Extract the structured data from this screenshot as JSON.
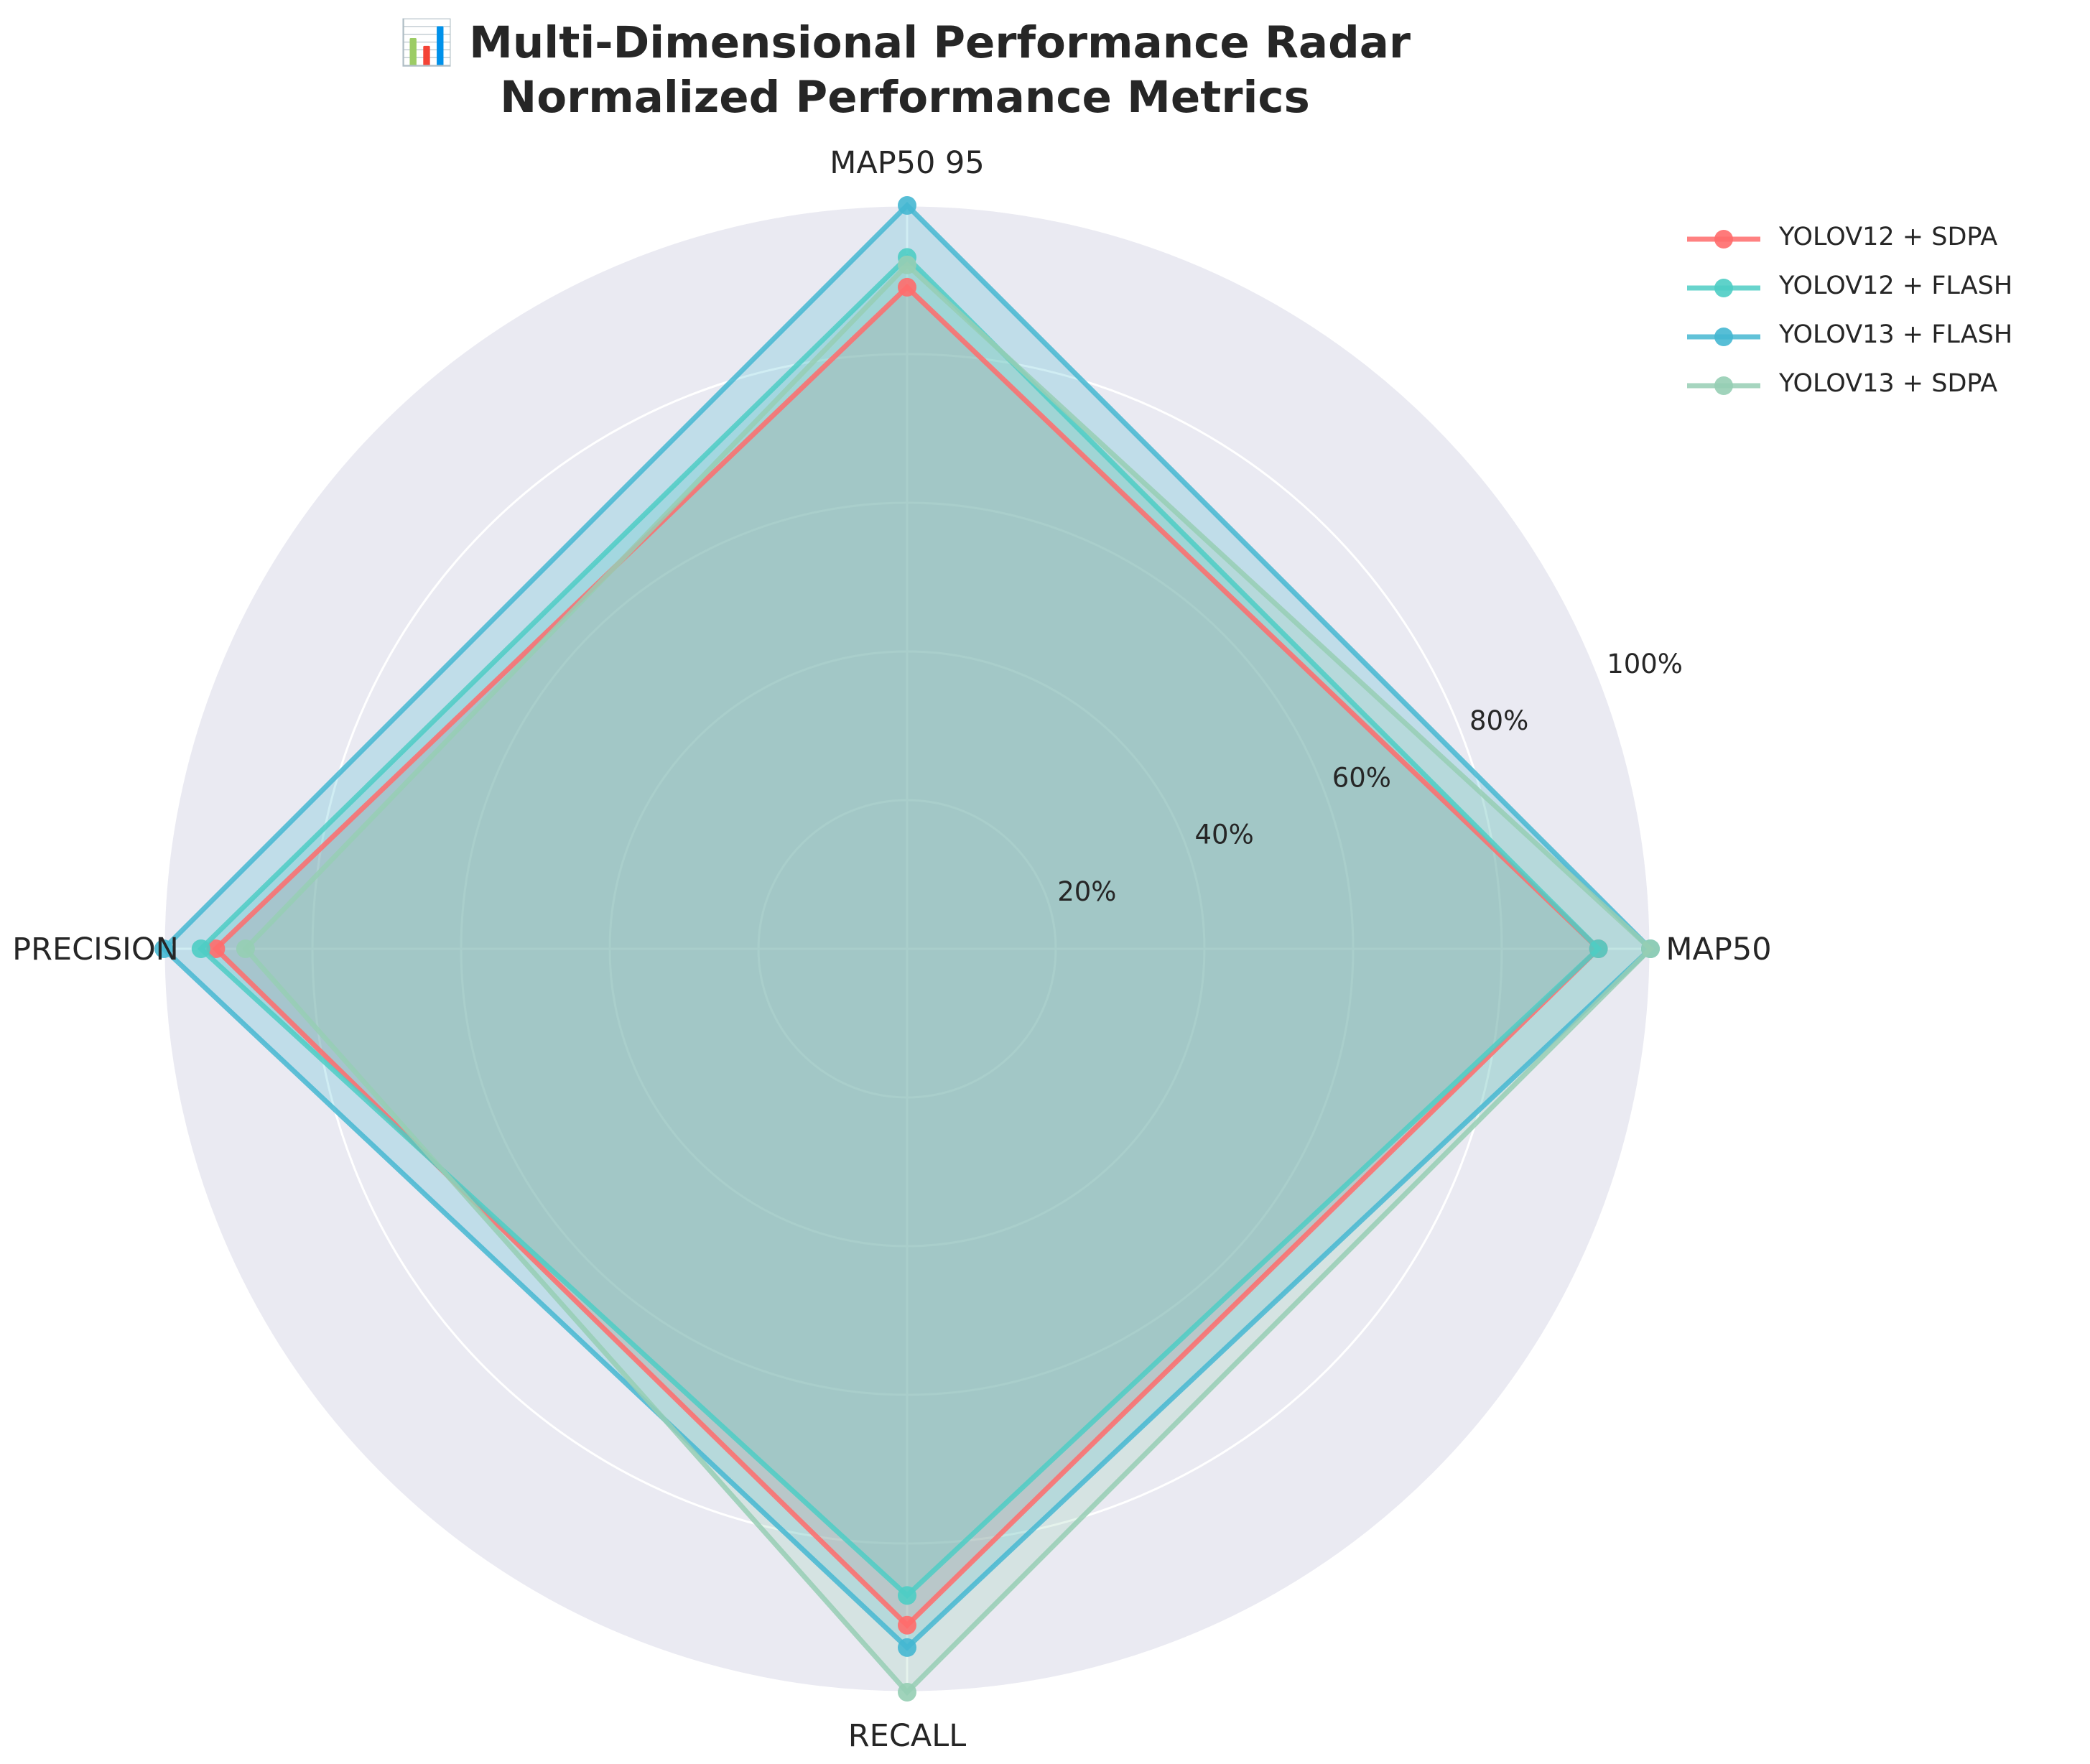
{
  "chart_data": {
    "type": "radar",
    "title_lines": [
      "📊 Multi-Dimensional Performance Radar",
      "Normalized Performance Metrics"
    ],
    "axes": [
      "MAP50",
      "MAP50 95",
      "PRECISION",
      "RECALL"
    ],
    "radial_ticks": [
      "20%",
      "40%",
      "60%",
      "80%",
      "100%"
    ],
    "radial_tick_values": [
      0.2,
      0.4,
      0.6,
      0.8,
      1.0
    ],
    "rlim": [
      0,
      1
    ],
    "grid": true,
    "legend_position": "upper-right-outside",
    "series": [
      {
        "name": "YOLOV12 + SDPA",
        "color": "#ff6b6b",
        "values": [
          0.93,
          0.89,
          0.93,
          0.91
        ]
      },
      {
        "name": "YOLOV12 + FLASH",
        "color": "#4ecdc4",
        "values": [
          0.93,
          0.93,
          0.95,
          0.87
        ]
      },
      {
        "name": "YOLOV13 + FLASH",
        "color": "#45b7d1",
        "values": [
          1.0,
          1.0,
          1.0,
          0.94
        ]
      },
      {
        "name": "YOLOV13 + SDPA",
        "color": "#96ceb4",
        "values": [
          1.0,
          0.92,
          0.89,
          1.0
        ]
      }
    ]
  }
}
